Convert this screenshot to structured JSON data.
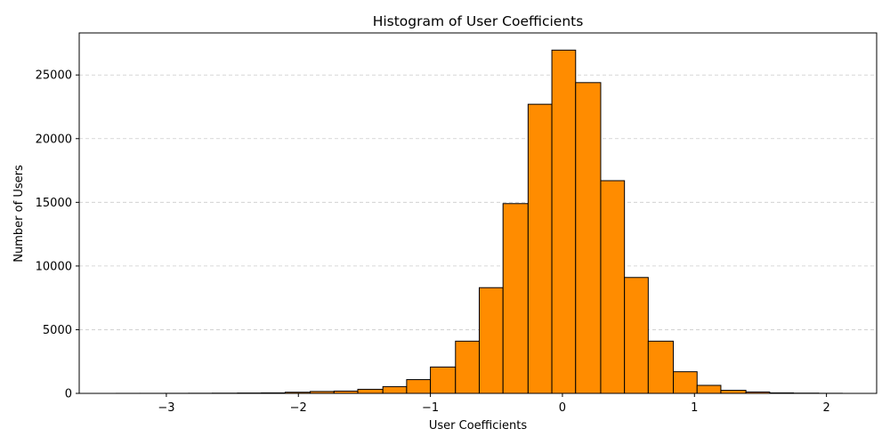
{
  "chart_data": {
    "type": "bar",
    "title": "Histogram of User Coefficients",
    "xlabel": "User Coefficients",
    "ylabel": "Number of Users",
    "xlim": [
      -3.66,
      2.38
    ],
    "ylim": [
      0,
      28300
    ],
    "xticks": [
      -3,
      -2,
      -1,
      0,
      1,
      2
    ],
    "xtick_labels": [
      "−3",
      "−2",
      "−1",
      "0",
      "1",
      "2"
    ],
    "yticks": [
      0,
      5000,
      10000,
      15000,
      20000,
      25000
    ],
    "ytick_labels": [
      "0",
      "5000",
      "10000",
      "15000",
      "20000",
      "25000"
    ],
    "grid": "y-dashed",
    "bar_color": "#ff8c00",
    "edge_color": "#000000",
    "grid_color": "#cccccc",
    "bin_edges": [
      -3.38,
      -3.2,
      -3.01,
      -2.83,
      -2.65,
      -2.46,
      -2.28,
      -2.1,
      -1.91,
      -1.73,
      -1.55,
      -1.36,
      -1.18,
      -1.0,
      -0.81,
      -0.63,
      -0.45,
      -0.26,
      -0.08,
      0.1,
      0.29,
      0.47,
      0.65,
      0.84,
      1.02,
      1.2,
      1.39,
      1.57,
      1.75,
      1.94,
      2.12
    ],
    "counts": [
      3,
      4,
      6,
      10,
      17,
      28,
      40,
      90,
      150,
      180,
      320,
      530,
      1080,
      2070,
      4100,
      8300,
      14900,
      22700,
      26950,
      24400,
      16700,
      9100,
      4100,
      1700,
      630,
      240,
      110,
      40,
      20,
      8
    ]
  }
}
